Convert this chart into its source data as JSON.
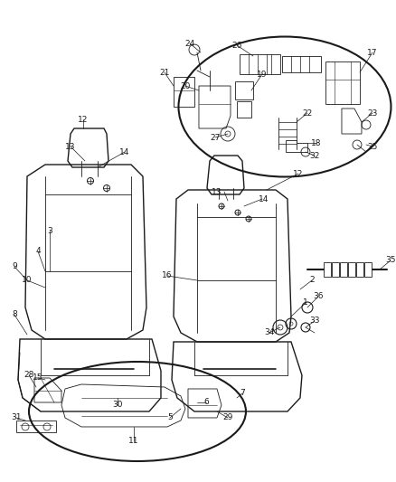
{
  "bg_color": "#ffffff",
  "line_color": "#1a1a1a",
  "label_color": "#1a1a1a",
  "figsize": [
    4.38,
    5.33
  ],
  "dpi": 100,
  "lw_main": 1.0,
  "lw_thin": 0.6,
  "fs_label": 6.5
}
